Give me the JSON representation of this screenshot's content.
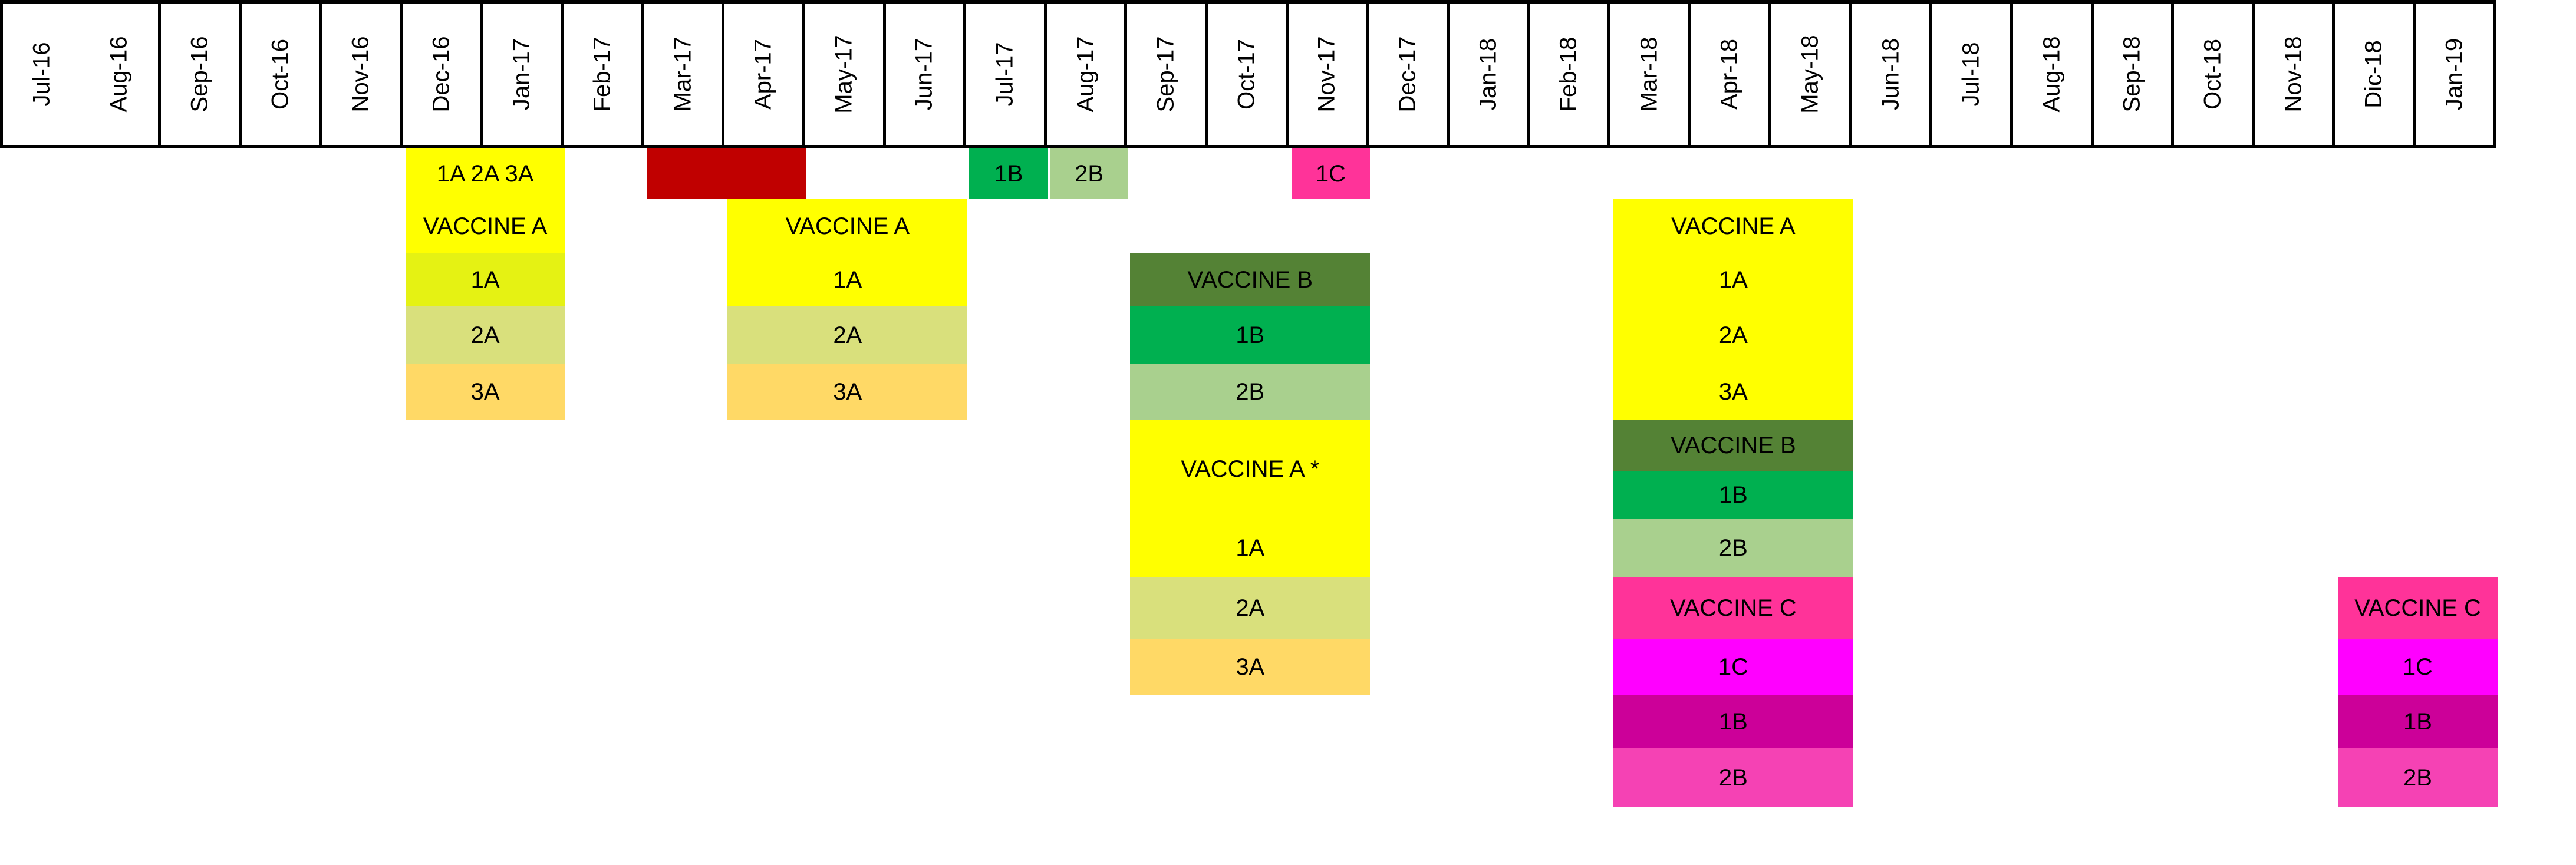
{
  "months": [
    "Jul-16",
    "Aug-16",
    "Sep-16",
    "Oct-16",
    "Nov-16",
    "Dec-16",
    "Jan-17",
    "Feb-17",
    "Mar-17",
    "Apr-17",
    "May-17",
    "Jun-17",
    "Jul-17",
    "Aug-17",
    "Sep-17",
    "Oct-17",
    "Nov-17",
    "Dec-17",
    "Jan-18",
    "Feb-18",
    "Mar-18",
    "Apr-18",
    "May-18",
    "Jun-18",
    "Jul-18",
    "Aug-18",
    "Sep-18",
    "Oct-18",
    "Nov-18",
    "Dic-18",
    "Jan-19"
  ],
  "colors": {
    "yellow": "#ffff00",
    "lime": "#e5f213",
    "olive_light": "#d9e07c",
    "orange_light": "#ffd966",
    "dark_red": "#c00000",
    "dark_green": "#548235",
    "green": "#00b050",
    "green_light": "#a9d08e",
    "pink": "#ff3399",
    "magenta": "#ff00ff",
    "dark_magenta": "#cc0099",
    "pink_mid": "#f542b4"
  },
  "blocks": [
    {
      "name": "dec16-top-label",
      "month_start": 5,
      "month_end": 6,
      "row": 0,
      "color": "yellow",
      "text": "1A 2A 3A"
    },
    {
      "name": "dec16-vaccine-a",
      "month_start": 5,
      "month_end": 6,
      "row": 1,
      "color": "yellow",
      "text": "VACCINE A"
    },
    {
      "name": "dec16-1a",
      "month_start": 5,
      "month_end": 6,
      "row": 2,
      "color": "lime",
      "text": "1A"
    },
    {
      "name": "dec16-2a",
      "month_start": 5,
      "month_end": 6,
      "row": 3,
      "color": "olive_light",
      "text": "2A"
    },
    {
      "name": "dec16-3a",
      "month_start": 5,
      "month_end": 6,
      "row": 4,
      "color": "orange_light",
      "text": "3A"
    },
    {
      "name": "mar17-red-bar",
      "month_start": 8,
      "month_end": 9,
      "row": 0,
      "color": "dark_red",
      "text": ""
    },
    {
      "name": "apr17-vaccine-a",
      "month_start": 9,
      "month_end": 11,
      "row": 1,
      "color": "yellow",
      "text": "VACCINE A"
    },
    {
      "name": "apr17-1a",
      "month_start": 9,
      "month_end": 11,
      "row": 2,
      "color": "yellow",
      "text": "1A"
    },
    {
      "name": "apr17-2a",
      "month_start": 9,
      "month_end": 11,
      "row": 3,
      "color": "olive_light",
      "text": "2A"
    },
    {
      "name": "apr17-3a",
      "month_start": 9,
      "month_end": 11,
      "row": 4,
      "color": "orange_light",
      "text": "3A"
    },
    {
      "name": "jul17-1b",
      "month_start": 12,
      "month_end": 12,
      "row": 0,
      "color": "green",
      "text": "1B"
    },
    {
      "name": "aug17-2b",
      "month_start": 13,
      "month_end": 13,
      "row": 0,
      "color": "green_light",
      "text": "2B"
    },
    {
      "name": "nov17-1c",
      "month_start": 16,
      "month_end": 16,
      "row": 0,
      "color": "pink",
      "text": "1C"
    },
    {
      "name": "sep17-vaccine-b",
      "month_start": 14,
      "month_end": 16,
      "row": 2,
      "color": "dark_green",
      "text": "VACCINE B"
    },
    {
      "name": "sep17-1b",
      "month_start": 14,
      "month_end": 16,
      "row": 3,
      "color": "green",
      "text": "1B"
    },
    {
      "name": "sep17-2b",
      "month_start": 14,
      "month_end": 16,
      "row": 4,
      "color": "green_light",
      "text": "2B"
    },
    {
      "name": "sep17-vaccine-a",
      "month_start": 14,
      "month_end": 16,
      "row": 5,
      "color": "yellow",
      "text": "VACCINE A *",
      "double": true
    },
    {
      "name": "sep17-1a",
      "month_start": 14,
      "month_end": 16,
      "row": 7,
      "color": "yellow",
      "text": "1A"
    },
    {
      "name": "sep17-2a",
      "month_start": 14,
      "month_end": 16,
      "row": 8,
      "color": "olive_light",
      "text": "2A"
    },
    {
      "name": "sep17-3a",
      "month_start": 14,
      "month_end": 16,
      "row": 9,
      "color": "orange_light",
      "text": "3A"
    },
    {
      "name": "mar18-vaccine-a",
      "month_start": 20,
      "month_end": 22,
      "row": 1,
      "color": "yellow",
      "text": "VACCINE A"
    },
    {
      "name": "mar18-1a",
      "month_start": 20,
      "month_end": 22,
      "row": 2,
      "color": "yellow",
      "text": "1A"
    },
    {
      "name": "mar18-2a",
      "month_start": 20,
      "month_end": 22,
      "row": 3,
      "color": "yellow",
      "text": "2A"
    },
    {
      "name": "mar18-3a",
      "month_start": 20,
      "month_end": 22,
      "row": 4,
      "color": "yellow",
      "text": "3A"
    },
    {
      "name": "mar18-vaccine-b",
      "month_start": 20,
      "month_end": 22,
      "row": 5,
      "color": "dark_green",
      "text": "VACCINE B"
    },
    {
      "name": "mar18-1b",
      "month_start": 20,
      "month_end": 22,
      "row": 6,
      "color": "green",
      "text": "1B"
    },
    {
      "name": "mar18-2b",
      "month_start": 20,
      "month_end": 22,
      "row": 7,
      "color": "green_light",
      "text": "2B"
    },
    {
      "name": "mar18-vaccine-c",
      "month_start": 20,
      "month_end": 22,
      "row": 8,
      "color": "pink",
      "text": "VACCINE C"
    },
    {
      "name": "mar18-1c",
      "month_start": 20,
      "month_end": 22,
      "row": 9,
      "color": "magenta",
      "text": "1C"
    },
    {
      "name": "mar18-1b-c",
      "month_start": 20,
      "month_end": 22,
      "row": 10,
      "color": "dark_magenta",
      "text": "1B"
    },
    {
      "name": "mar18-2b-c",
      "month_start": 20,
      "month_end": 22,
      "row": 11,
      "color": "pink_mid",
      "text": "2B"
    },
    {
      "name": "dec18-vaccine-c",
      "month_start": 29,
      "month_end": 30,
      "row": 8,
      "color": "pink",
      "text": "VACCINE C"
    },
    {
      "name": "dec18-1c",
      "month_start": 29,
      "month_end": 30,
      "row": 9,
      "color": "magenta",
      "text": "1C"
    },
    {
      "name": "dec18-1b",
      "month_start": 29,
      "month_end": 30,
      "row": 10,
      "color": "dark_magenta",
      "text": "1B"
    },
    {
      "name": "dec18-2b",
      "month_start": 29,
      "month_end": 30,
      "row": 11,
      "color": "pink_mid",
      "text": "2B"
    }
  ]
}
